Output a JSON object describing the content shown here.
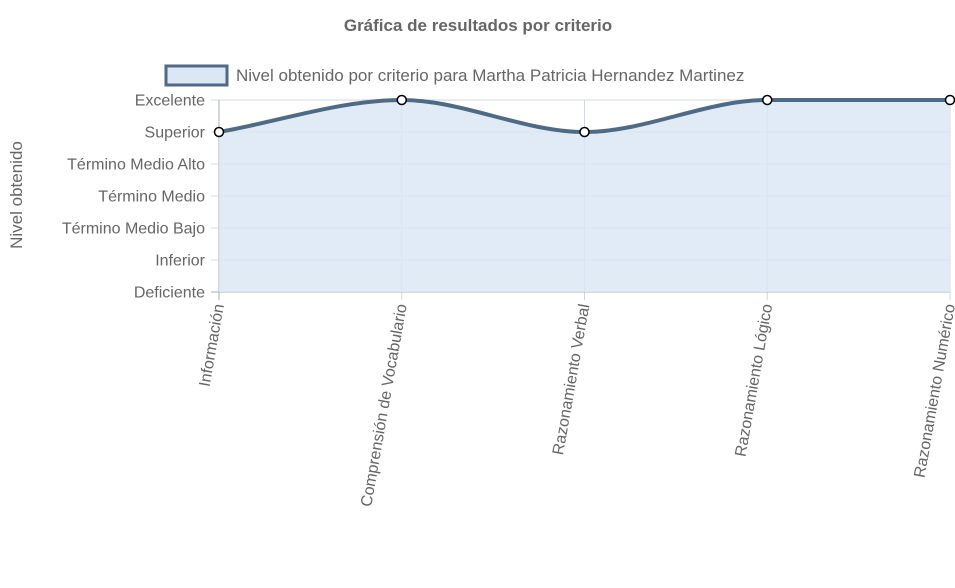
{
  "chart_data": {
    "type": "line",
    "title": "Gráfica de resultados por criterio",
    "xlabel": "",
    "ylabel": "Nivel obtenido",
    "categories": [
      "Información",
      "Comprensión de Vocabulario",
      "Razonamiento Verbal",
      "Razonamiento Lógico",
      "Razonamiento Numérico"
    ],
    "y_levels": [
      "Deficiente",
      "Inferior",
      "Término Medio Bajo",
      "Término Medio",
      "Término Medio Alto",
      "Superior",
      "Excelente"
    ],
    "ylim": [
      1,
      7
    ],
    "series": [
      {
        "name": "Nivel obtenido por criterio para Martha Patricia Hernandez Martinez",
        "values": [
          6,
          7,
          6,
          7,
          7
        ],
        "value_labels": [
          "Superior",
          "Excelente",
          "Superior",
          "Excelente",
          "Excelente"
        ]
      }
    ],
    "filled_area": true,
    "smooth_line": true,
    "grid": true,
    "legend_position": "top",
    "colors": {
      "line": "#4e6a85",
      "fill": "#dbe8f4",
      "point_fill": "#ffffff",
      "point_stroke": "#000000",
      "grid": "#d3d8de",
      "text": "#666666"
    }
  }
}
